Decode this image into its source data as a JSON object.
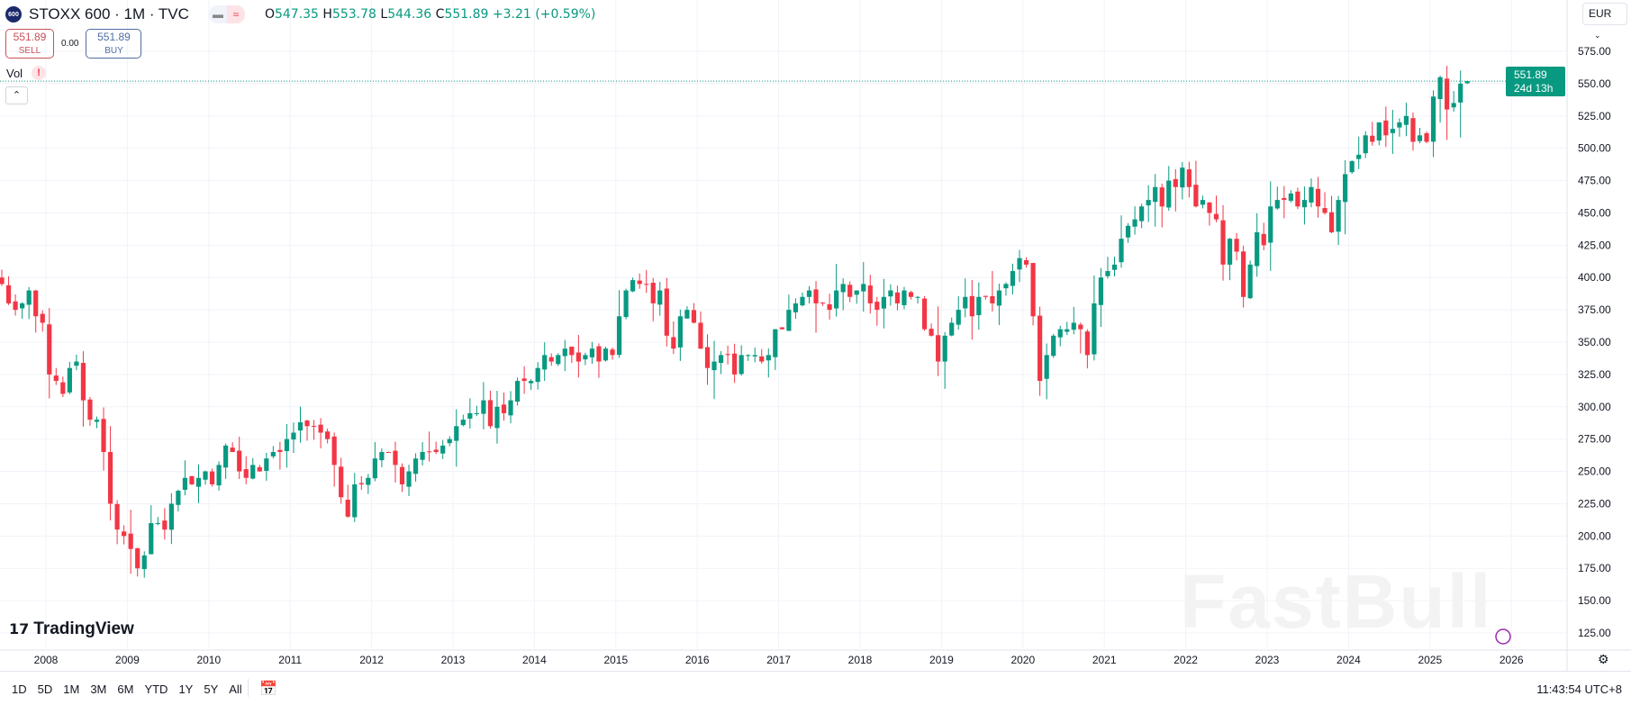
{
  "header": {
    "logo_text": "600",
    "title": "STOXX 600 · 1M · TVC",
    "ohlc": {
      "o_label": "O",
      "o": "547.35",
      "h_label": "H",
      "h": "553.78",
      "l_label": "L",
      "l": "544.36",
      "c_label": "C",
      "c": "551.89",
      "change": "+3.21 (+0.59%)"
    }
  },
  "trade": {
    "sell_price": "551.89",
    "sell_label": "SELL",
    "spread": "0.00",
    "buy_price": "551.89",
    "buy_label": "BUY"
  },
  "indicator": {
    "label": "Vol",
    "warning": "!"
  },
  "currency": "EUR",
  "price_tag": {
    "price": "551.89",
    "countdown": "24d 13h"
  },
  "branding": {
    "logo": "TradingView",
    "watermark": "FastBull"
  },
  "colors": {
    "up": "#089981",
    "down": "#f23645"
  },
  "bottom": {
    "ranges": [
      "1D",
      "5D",
      "1M",
      "3M",
      "6M",
      "YTD",
      "1Y",
      "5Y",
      "All"
    ],
    "time": "11:43:54 UTC+8"
  },
  "chart_data": {
    "type": "candlestick",
    "interval": "1M",
    "start": "2007-06",
    "ylim": [
      110,
      590
    ],
    "y_ticks": [
      "575.00",
      "550.00",
      "525.00",
      "500.00",
      "475.00",
      "450.00",
      "425.00",
      "400.00",
      "375.00",
      "350.00",
      "325.00",
      "300.00",
      "275.00",
      "250.00",
      "225.00",
      "200.00",
      "175.00",
      "150.00",
      "125.00"
    ],
    "x_ticks": [
      "2008",
      "2009",
      "2010",
      "2011",
      "2012",
      "2013",
      "2014",
      "2015",
      "2016",
      "2017",
      "2018",
      "2019",
      "2020",
      "2021",
      "2022",
      "2023",
      "2024",
      "2025",
      "2026"
    ],
    "last_price": 551.89,
    "monthly_close": [
      395,
      380,
      375,
      380,
      390,
      370,
      365,
      325,
      320,
      310,
      330,
      335,
      305,
      290,
      290,
      265,
      225,
      205,
      200,
      190,
      175,
      185,
      210,
      210,
      205,
      225,
      235,
      245,
      240,
      245,
      250,
      240,
      255,
      270,
      265,
      250,
      245,
      255,
      250,
      260,
      265,
      265,
      275,
      280,
      288,
      285,
      285,
      280,
      275,
      255,
      230,
      215,
      240,
      240,
      245,
      260,
      265,
      265,
      255,
      240,
      250,
      260,
      265,
      265,
      265,
      270,
      275,
      285,
      290,
      295,
      295,
      305,
      285,
      300,
      295,
      305,
      320,
      320,
      320,
      330,
      340,
      335,
      340,
      345,
      340,
      335,
      340,
      345,
      335,
      345,
      340,
      370,
      390,
      398,
      395,
      395,
      380,
      390,
      355,
      345,
      370,
      375,
      365,
      345,
      330,
      335,
      340,
      340,
      325,
      340,
      340,
      340,
      335,
      340,
      360,
      360,
      375,
      380,
      385,
      390,
      380,
      380,
      375,
      390,
      395,
      385,
      390,
      395,
      380,
      375,
      385,
      390,
      380,
      390,
      385,
      385,
      360,
      355,
      335,
      355,
      365,
      375,
      385,
      370,
      385,
      385,
      380,
      390,
      395,
      405,
      415,
      410,
      370,
      320,
      340,
      355,
      360,
      360,
      365,
      360,
      340,
      380,
      400,
      405,
      410,
      430,
      440,
      445,
      455,
      460,
      470,
      455,
      475,
      470,
      485,
      470,
      455,
      460,
      450,
      445,
      410,
      430,
      420,
      385,
      410,
      435,
      425,
      455,
      460,
      460,
      465,
      455,
      460,
      470,
      455,
      450,
      435,
      460,
      480,
      490,
      495,
      510,
      505,
      520,
      510,
      515,
      520,
      525,
      505,
      510,
      505,
      540,
      555,
      530,
      535,
      550,
      551.89
    ]
  }
}
